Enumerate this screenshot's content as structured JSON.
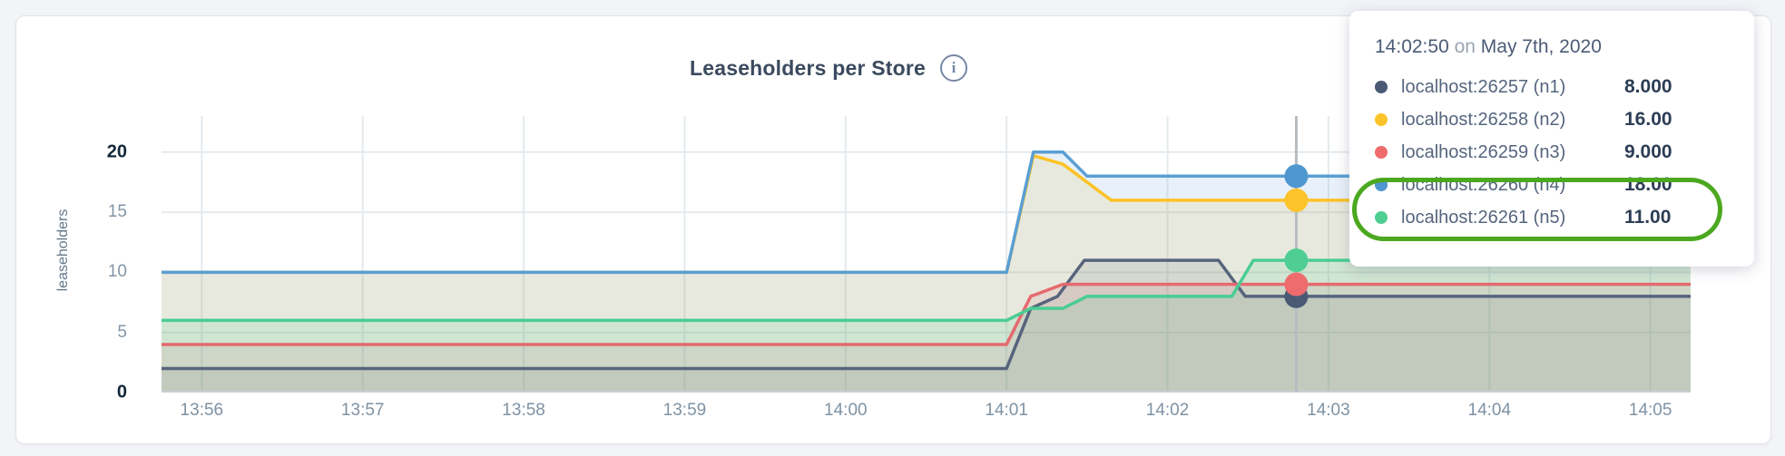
{
  "header": {
    "title": "Leaseholders per Store",
    "info_glyph": "i"
  },
  "y_axis": {
    "label": "leaseholders",
    "ticks": [
      {
        "value": 0,
        "label": "0",
        "bold": true
      },
      {
        "value": 5,
        "label": "5",
        "bold": false
      },
      {
        "value": 10,
        "label": "10",
        "bold": false
      },
      {
        "value": 15,
        "label": "15",
        "bold": false
      },
      {
        "value": 20,
        "label": "20",
        "bold": true
      }
    ]
  },
  "x_axis": {
    "ticks": [
      {
        "t": 15,
        "label": "13:56"
      },
      {
        "t": 75,
        "label": "13:57"
      },
      {
        "t": 135,
        "label": "13:58"
      },
      {
        "t": 195,
        "label": "13:59"
      },
      {
        "t": 255,
        "label": "14:00"
      },
      {
        "t": 315,
        "label": "14:01"
      },
      {
        "t": 375,
        "label": "14:02"
      },
      {
        "t": 435,
        "label": "14:03"
      },
      {
        "t": 495,
        "label": "14:04"
      },
      {
        "t": 555,
        "label": "14:05"
      }
    ]
  },
  "tooltip": {
    "time": "14:02:50",
    "conjunction": "on",
    "date": "May 7th, 2020",
    "rows": [
      {
        "name": "localhost:26257 (n1)",
        "value": "8.000",
        "color": "#4a5a74"
      },
      {
        "name": "localhost:26258 (n2)",
        "value": "16.00",
        "color": "#fdc32a"
      },
      {
        "name": "localhost:26259 (n3)",
        "value": "9.000",
        "color": "#ee6b6e"
      },
      {
        "name": "localhost:26260 (n4)",
        "value": "18.00",
        "color": "#4f97ce"
      },
      {
        "name": "localhost:26261 (n5)",
        "value": "11.00",
        "color": "#4fce93"
      }
    ],
    "highlight_color": "#4ba81f",
    "highlighted_rows": [
      3,
      4
    ]
  },
  "chart_data": {
    "type": "area",
    "title": "Leaseholders per Store",
    "ylabel": "leaseholders",
    "x_domain_seconds": [
      0,
      570
    ],
    "x_start_label": "13:56",
    "x_end_label": "14:05",
    "ylim": [
      0,
      23
    ],
    "yticks": [
      0,
      5,
      10,
      15,
      20
    ],
    "grid": true,
    "fill_opacity": 0.14,
    "grid_color": "#e4eaee",
    "baseline_color": "#c9cfd2",
    "series": [
      {
        "name": "localhost:26257 (n1)",
        "color": "#56647c",
        "points": [
          [
            0,
            2
          ],
          [
            315,
            2
          ],
          [
            324,
            7
          ],
          [
            334,
            8
          ],
          [
            344,
            11
          ],
          [
            394,
            11
          ],
          [
            404,
            8
          ],
          [
            570,
            8
          ]
        ]
      },
      {
        "name": "localhost:26258 (n2)",
        "color": "#fcc226",
        "points": [
          [
            0,
            10
          ],
          [
            315,
            10
          ],
          [
            325,
            19.7
          ],
          [
            336,
            19
          ],
          [
            354,
            16
          ],
          [
            570,
            16
          ]
        ]
      },
      {
        "name": "localhost:26259 (n3)",
        "color": "#e56a6e",
        "points": [
          [
            0,
            4
          ],
          [
            315,
            4
          ],
          [
            324,
            8
          ],
          [
            336,
            9
          ],
          [
            570,
            9
          ]
        ]
      },
      {
        "name": "localhost:26260 (n4)",
        "color": "#5a9fd4",
        "points": [
          [
            0,
            10
          ],
          [
            315,
            10
          ],
          [
            325,
            20
          ],
          [
            336,
            20
          ],
          [
            345,
            18
          ],
          [
            570,
            18
          ]
        ]
      },
      {
        "name": "localhost:26261 (n5)",
        "color": "#49cd92",
        "points": [
          [
            0,
            6
          ],
          [
            315,
            6
          ],
          [
            324,
            7
          ],
          [
            336,
            7
          ],
          [
            345,
            8
          ],
          [
            399,
            8
          ],
          [
            407,
            11
          ],
          [
            570,
            11
          ]
        ]
      }
    ],
    "hover": {
      "t": 423,
      "time_label": "14:02:50",
      "line_color": "#b7bcc0",
      "marker_radius": 13,
      "values": [
        8,
        16,
        9,
        18,
        11
      ]
    }
  }
}
